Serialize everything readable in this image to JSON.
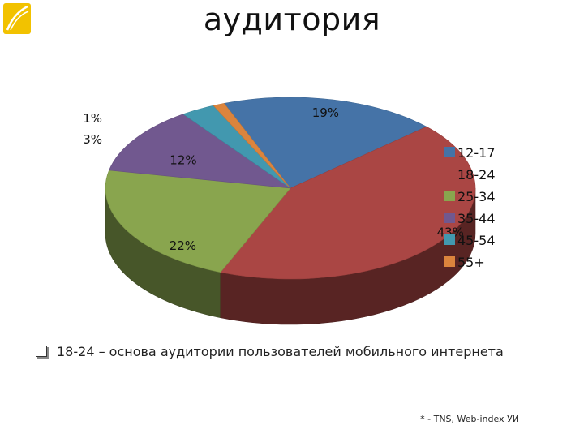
{
  "logo": {
    "icon": "brand-logo-icon",
    "color": "#f2c200"
  },
  "title": "аудитория",
  "bullet": "18-24 – основа аудитории пользователей мобильного интернета",
  "footnote": "* - TNS, Web-index УИ",
  "chart_data": {
    "type": "pie",
    "style": "3d",
    "categories": [
      "12-17",
      "18-24",
      "25-34",
      "35-44",
      "45-54",
      "55+"
    ],
    "values": [
      19,
      43,
      22,
      12,
      3,
      1
    ],
    "labels": [
      "19%",
      "43%",
      "22%",
      "12%",
      "3%",
      "1%"
    ],
    "colors": [
      "#4573a7",
      "#aa4644",
      "#89a54e",
      "#71588f",
      "#4298af",
      "#db843d"
    ],
    "legend": "right"
  }
}
